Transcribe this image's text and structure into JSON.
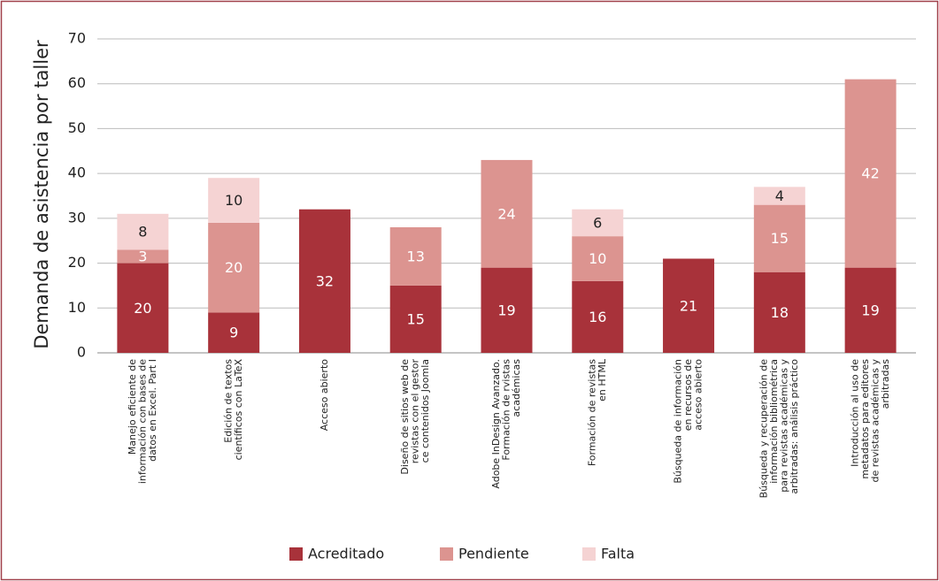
{
  "chart_data": {
    "type": "stacked_bar",
    "y_label": "Demanda de asistencia por taller",
    "categories": [
      [
        "Manejo eficiente de",
        "información con bases de",
        "datos en Excel. Part I"
      ],
      [
        "Edición de textos",
        "científicos con LaTeX"
      ],
      [
        "Acceso abierto"
      ],
      [
        "Diseño de sitios web de",
        "revistas con el gestor",
        "ce contenidos Joomla"
      ],
      [
        "Adobe InDesign Avanzado.",
        "Formación de rvistas",
        "académicas"
      ],
      [
        "Formación de revistas",
        "en HTML"
      ],
      [
        "Búsqueda de información",
        "en recursos de",
        "acceso abierto"
      ],
      [
        "Búsqueda y recuperación de",
        "información bibliométrica",
        "para revistas académicas y",
        "arbitradas: análisis práctico"
      ],
      [
        "Introducción al uso de",
        "metadatos para editores",
        "de revistas académicas y",
        "arbitradas"
      ]
    ],
    "series": [
      {
        "name": "Acreditado",
        "color": "#a8323a",
        "values": [
          20,
          9,
          32,
          15,
          19,
          16,
          21,
          18,
          19
        ]
      },
      {
        "name": "Pendiente",
        "color": "#dc9490",
        "values": [
          3,
          20,
          null,
          13,
          24,
          10,
          null,
          15,
          42
        ]
      },
      {
        "name": "Falta",
        "color": "#f5d3d3",
        "values": [
          8,
          10,
          null,
          null,
          null,
          6,
          null,
          4,
          null
        ]
      }
    ],
    "ylim": [
      0,
      70
    ],
    "yticks": [
      0,
      10,
      20,
      30,
      40,
      50,
      60,
      70
    ],
    "grid": true,
    "legend": "bottom"
  }
}
